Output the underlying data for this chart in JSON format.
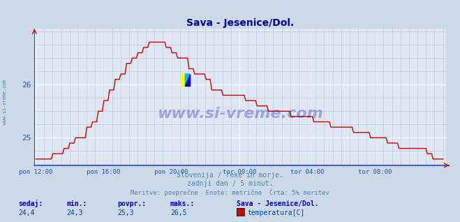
{
  "title": "Sava - Jesenice/Dol.",
  "title_color": "#000099",
  "bg_color": "#ccd9e8",
  "plot_bg_color": "#dde8f4",
  "line_color": "#cc0000",
  "line_width": 1.0,
  "ylabel_color": "#2255aa",
  "xlabel_color": "#2255aa",
  "grid_color_major": "#ffffff",
  "grid_color_minor": "#ccbbcc",
  "ymin": 24.48,
  "ymax": 27.05,
  "ytick_vals": [
    25.0,
    26.0
  ],
  "ytick_labels": [
    "25",
    "26"
  ],
  "xtick_positions": [
    0.0,
    0.1667,
    0.3333,
    0.5,
    0.6667,
    0.8333
  ],
  "xtick_labels": [
    "pon 12:00",
    "pon 16:00",
    "pon 20:00",
    "tor 00:00",
    "tor 04:00",
    "tor 08:00"
  ],
  "footer_line1": "Slovenija / reke in morje.",
  "footer_line2": "zadnji dan / 5 minut.",
  "footer_line3": "Meritve: povprečne  Enote: metrične  Črta: 5% meritev",
  "footer_color": "#4488bb",
  "stats_labels": [
    "sedaj:",
    "min.:",
    "povpr.:",
    "maks.:"
  ],
  "stats_values": [
    "24,4",
    "24,3",
    "25,3",
    "26,5"
  ],
  "stats_label_color": "#0000bb",
  "stats_value_color": "#0044aa",
  "legend_station": "Sava - Jesenice/Dol.",
  "legend_sublabel": "temperatura[C]",
  "legend_color": "#cc0000",
  "watermark": "www.si-vreme.com",
  "watermark_color": "#0000aa",
  "watermark_alpha": 0.28,
  "sidebar_text": "www.si-vreme.com",
  "sidebar_color": "#4477aa",
  "n_points": 288
}
